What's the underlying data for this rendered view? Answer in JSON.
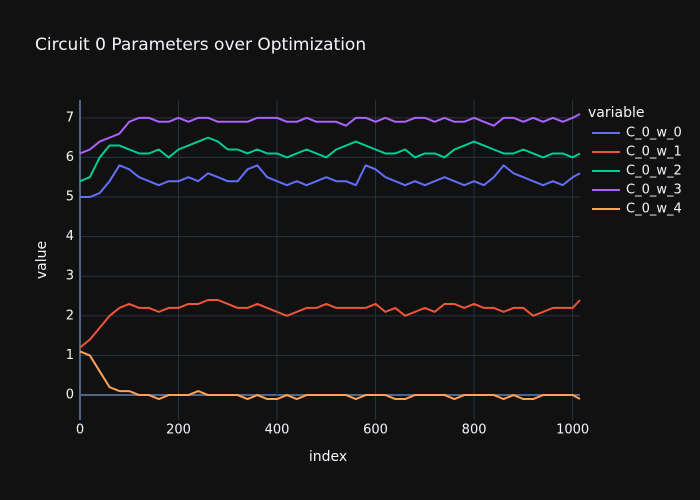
{
  "chart_data": {
    "type": "line",
    "title": "Circuit 0 Parameters over Optimization",
    "x_label": "index",
    "y_label": "value",
    "legend_title": "variable",
    "x": [
      0,
      20,
      40,
      60,
      80,
      100,
      120,
      140,
      160,
      180,
      200,
      220,
      240,
      260,
      280,
      300,
      320,
      340,
      360,
      380,
      400,
      420,
      440,
      460,
      480,
      500,
      520,
      540,
      560,
      580,
      600,
      620,
      640,
      660,
      680,
      700,
      720,
      740,
      760,
      780,
      800,
      820,
      840,
      860,
      880,
      900,
      920,
      940,
      960,
      980,
      1000,
      1015
    ],
    "series": [
      {
        "name": "C_0_w_0",
        "color": "#636efa",
        "values": [
          5.0,
          5.0,
          5.1,
          5.4,
          5.8,
          5.7,
          5.5,
          5.4,
          5.3,
          5.4,
          5.4,
          5.5,
          5.4,
          5.6,
          5.5,
          5.4,
          5.4,
          5.7,
          5.8,
          5.5,
          5.4,
          5.3,
          5.4,
          5.3,
          5.4,
          5.5,
          5.4,
          5.4,
          5.3,
          5.8,
          5.7,
          5.5,
          5.4,
          5.3,
          5.4,
          5.3,
          5.4,
          5.5,
          5.4,
          5.3,
          5.4,
          5.3,
          5.5,
          5.8,
          5.6,
          5.5,
          5.4,
          5.3,
          5.4,
          5.3,
          5.5,
          5.6
        ]
      },
      {
        "name": "C_0_w_1",
        "color": "#EF553B",
        "values": [
          1.2,
          1.4,
          1.7,
          2.0,
          2.2,
          2.3,
          2.2,
          2.2,
          2.1,
          2.2,
          2.2,
          2.3,
          2.3,
          2.4,
          2.4,
          2.3,
          2.2,
          2.2,
          2.3,
          2.2,
          2.1,
          2.0,
          2.1,
          2.2,
          2.2,
          2.3,
          2.2,
          2.2,
          2.2,
          2.2,
          2.3,
          2.1,
          2.2,
          2.0,
          2.1,
          2.2,
          2.1,
          2.3,
          2.3,
          2.2,
          2.3,
          2.2,
          2.2,
          2.1,
          2.2,
          2.2,
          2.0,
          2.1,
          2.2,
          2.2,
          2.2,
          2.4
        ]
      },
      {
        "name": "C_0_w_2",
        "color": "#00cc96",
        "values": [
          5.4,
          5.5,
          6.0,
          6.3,
          6.3,
          6.2,
          6.1,
          6.1,
          6.2,
          6.0,
          6.2,
          6.3,
          6.4,
          6.5,
          6.4,
          6.2,
          6.2,
          6.1,
          6.2,
          6.1,
          6.1,
          6.0,
          6.1,
          6.2,
          6.1,
          6.0,
          6.2,
          6.3,
          6.4,
          6.3,
          6.2,
          6.1,
          6.1,
          6.2,
          6.0,
          6.1,
          6.1,
          6.0,
          6.2,
          6.3,
          6.4,
          6.3,
          6.2,
          6.1,
          6.1,
          6.2,
          6.1,
          6.0,
          6.1,
          6.1,
          6.0,
          6.1
        ]
      },
      {
        "name": "C_0_w_3",
        "color": "#ab63fa",
        "values": [
          6.1,
          6.2,
          6.4,
          6.5,
          6.6,
          6.9,
          7.0,
          7.0,
          6.9,
          6.9,
          7.0,
          6.9,
          7.0,
          7.0,
          6.9,
          6.9,
          6.9,
          6.9,
          7.0,
          7.0,
          7.0,
          6.9,
          6.9,
          7.0,
          6.9,
          6.9,
          6.9,
          6.8,
          7.0,
          7.0,
          6.9,
          7.0,
          6.9,
          6.9,
          7.0,
          7.0,
          6.9,
          7.0,
          6.9,
          6.9,
          7.0,
          6.9,
          6.8,
          7.0,
          7.0,
          6.9,
          7.0,
          6.9,
          7.0,
          6.9,
          7.0,
          7.1
        ]
      },
      {
        "name": "C_0_w_4",
        "color": "#FFA15A",
        "values": [
          1.1,
          1.0,
          0.6,
          0.2,
          0.1,
          0.1,
          0.0,
          0.0,
          -0.1,
          0.0,
          0.0,
          0.0,
          0.1,
          0.0,
          0.0,
          0.0,
          0.0,
          -0.1,
          0.0,
          -0.1,
          -0.1,
          0.0,
          -0.1,
          0.0,
          0.0,
          0.0,
          0.0,
          0.0,
          -0.1,
          0.0,
          0.0,
          0.0,
          -0.1,
          -0.1,
          0.0,
          0.0,
          0.0,
          0.0,
          -0.1,
          0.0,
          0.0,
          0.0,
          0.0,
          -0.1,
          0.0,
          -0.1,
          -0.1,
          0.0,
          0.0,
          0.0,
          0.0,
          -0.1
        ]
      }
    ],
    "xlim": [
      0,
      1015
    ],
    "ylim": [
      -0.63,
      7.45
    ],
    "xticks": [
      0,
      200,
      400,
      600,
      800,
      1000
    ],
    "yticks": [
      0,
      1,
      2,
      3,
      4,
      5,
      6,
      7
    ],
    "grid": true
  }
}
